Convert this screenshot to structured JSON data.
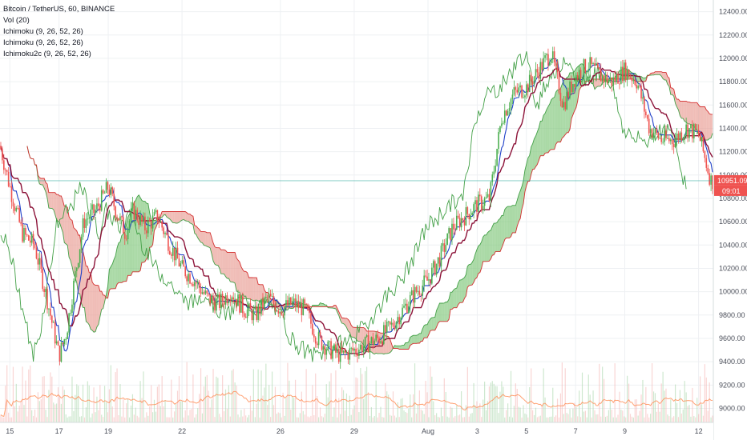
{
  "header": {
    "symbol": "Bitcoin / TetherUS, 60, BINANCE",
    "indicators": [
      "Vol (20)",
      "Ichimoku (9, 26, 52, 26)",
      "Ichimoku (9, 26, 52, 26)",
      "Ichimoku2c (9, 26, 52, 26)"
    ]
  },
  "price_badge": {
    "price": "10951.09",
    "countdown": "09:01",
    "color": "#ef5350"
  },
  "colors": {
    "candle_up": "#4caf50",
    "candle_down": "#ef5350",
    "conversion": "#1e3fc8",
    "base": "#8c1238",
    "lagging": "#43a047",
    "cloud_up_fill": "#7cc576",
    "cloud_down_fill": "#e89a90",
    "span_a": "#43a047",
    "span_b": "#d32f2f",
    "volume_ma": "#ff8a50"
  },
  "chart_data": {
    "type": "candlestick",
    "title": "Bitcoin / TetherUS, 60, BINANCE",
    "y_ticks": [
      9000,
      9200,
      9400,
      9600,
      9800,
      10000,
      10200,
      10400,
      10600,
      10800,
      11000,
      11200,
      11400,
      11600,
      11800,
      12000,
      12200,
      12400
    ],
    "y_tick_labels": [
      "9000.00",
      "9200.00",
      "9400.00",
      "9600.00",
      "9800.00",
      "10000.00",
      "10200.00",
      "10400.00",
      "10600.00",
      "10800.00",
      "11000.00",
      "11200.00",
      "11400.00",
      "11600.00",
      "11800.00",
      "12000.00",
      "12200.00",
      "12400.00"
    ],
    "ylim": [
      8880,
      12500
    ],
    "x_ticks": [
      {
        "label": "15",
        "day": 0.0
      },
      {
        "label": "17",
        "day": 2.0
      },
      {
        "label": "19",
        "day": 4.0
      },
      {
        "label": "22",
        "day": 7.0
      },
      {
        "label": "26",
        "day": 11.0
      },
      {
        "label": "29",
        "day": 14.0
      },
      {
        "label": "Aug",
        "day": 17.0
      },
      {
        "label": "3",
        "day": 19.0
      },
      {
        "label": "5",
        "day": 21.0
      },
      {
        "label": "7",
        "day": 23.0
      },
      {
        "label": "9",
        "day": 25.0
      },
      {
        "label": "12",
        "day": 28.0
      }
    ],
    "x_range_days": [
      -0.4,
      28.6
    ],
    "current_price": 10951.09,
    "close_series": {
      "day": [
        -0.4,
        0.0,
        0.5,
        1.0,
        1.5,
        2.0,
        2.3,
        2.7,
        3.0,
        3.5,
        4.0,
        4.3,
        4.7,
        5.0,
        5.5,
        6.0,
        6.5,
        7.0,
        7.5,
        8.0,
        8.5,
        9.0,
        9.5,
        10.0,
        10.5,
        11.0,
        11.5,
        12.0,
        12.5,
        13.0,
        13.5,
        14.0,
        14.5,
        15.0,
        15.5,
        16.0,
        16.5,
        17.0,
        17.5,
        18.0,
        18.5,
        19.0,
        19.5,
        20.0,
        20.5,
        21.0,
        21.5,
        22.0,
        22.5,
        23.0,
        23.5,
        24.0,
        24.5,
        25.0,
        25.5,
        26.0,
        26.5,
        27.0,
        27.5,
        28.0,
        28.5
      ],
      "price": [
        11250,
        10900,
        10500,
        10400,
        9950,
        9450,
        9650,
        10200,
        10600,
        10700,
        10900,
        10700,
        10500,
        10700,
        10550,
        10650,
        10400,
        10200,
        10100,
        9950,
        9900,
        10000,
        9850,
        9800,
        9950,
        9850,
        9900,
        9850,
        9600,
        9500,
        9450,
        9500,
        9550,
        9600,
        9700,
        9850,
        10000,
        10100,
        10300,
        10550,
        10650,
        10750,
        10800,
        11500,
        11700,
        11750,
        11900,
        12050,
        11600,
        11850,
        11950,
        11850,
        11800,
        11900,
        11800,
        11400,
        11300,
        11300,
        11400,
        11350,
        10950
      ]
    },
    "volume_ylim": [
      0,
      2200
    ]
  }
}
